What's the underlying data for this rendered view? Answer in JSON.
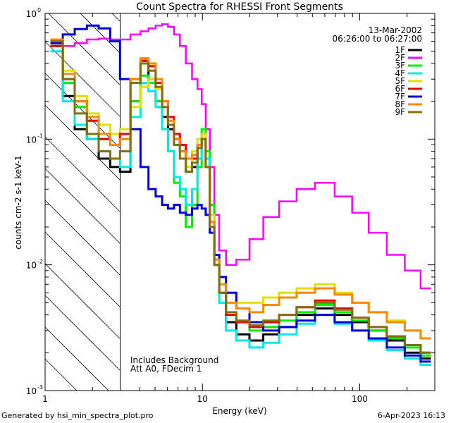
{
  "chart_data": {
    "type": "line",
    "title": "Count Spectra for RHESSI Front Segments",
    "xlabel": "Energy (keV)",
    "ylabel": "counts cm-2 s-1 keV-1",
    "xscale": "log",
    "yscale": "log",
    "xlim": [
      1,
      300
    ],
    "ylim": [
      0.001,
      1.0
    ],
    "x_tick_labels": [
      "1",
      "10",
      "100"
    ],
    "y_tick_labels": [
      "10",
      "10",
      "10",
      "10"
    ],
    "y_tick_exponents": [
      "0",
      "-1",
      "-2",
      "-3"
    ],
    "shaded_region_keV": [
      1,
      3
    ],
    "legend": {
      "date": "13-Mar-2002",
      "time_range": "06:26:00 to 06:27:00",
      "placement": "top-right"
    },
    "annotations": [
      "Includes Background",
      "Att A0, FDecim 1"
    ],
    "series": [
      {
        "name": "1F",
        "color": "#000000",
        "x": [
          1.2,
          1.4,
          1.7,
          2.0,
          2.4,
          2.8,
          3.2,
          3.8,
          4.3,
          4.8,
          5.3,
          5.8,
          6.3,
          6.9,
          7.5,
          8.2,
          9.0,
          9.6,
          10.2,
          10.8,
          11.5,
          12.3,
          13.3,
          15,
          18,
          22,
          27,
          35,
          45,
          60,
          80,
          100,
          130,
          170,
          220,
          270
        ],
        "y": [
          0.55,
          0.22,
          0.12,
          0.1,
          0.07,
          0.06,
          0.055,
          0.2,
          0.42,
          0.3,
          0.2,
          0.15,
          0.12,
          0.1,
          0.08,
          0.055,
          0.06,
          0.09,
          0.1,
          0.07,
          0.03,
          0.012,
          0.006,
          0.0035,
          0.0028,
          0.0025,
          0.0028,
          0.0032,
          0.004,
          0.0045,
          0.004,
          0.0035,
          0.003,
          0.0025,
          0.002,
          0.0018
        ]
      },
      {
        "name": "2F",
        "color": "#ff00ff",
        "x": [
          1.2,
          1.4,
          1.7,
          2.0,
          2.4,
          2.8,
          3.2,
          3.8,
          4.3,
          4.8,
          5.3,
          5.8,
          6.3,
          6.9,
          7.5,
          8.2,
          9.0,
          9.6,
          10.2,
          10.8,
          11.5,
          12.3,
          13.3,
          15,
          18,
          22,
          27,
          35,
          45,
          60,
          80,
          100,
          130,
          170,
          220,
          270
        ],
        "y": [
          0.6,
          0.55,
          0.58,
          0.62,
          0.63,
          0.62,
          0.62,
          0.68,
          0.72,
          0.76,
          0.8,
          0.82,
          0.78,
          0.68,
          0.55,
          0.4,
          0.3,
          0.25,
          0.19,
          0.12,
          0.06,
          0.025,
          0.013,
          0.01,
          0.011,
          0.016,
          0.024,
          0.032,
          0.04,
          0.045,
          0.035,
          0.026,
          0.018,
          0.012,
          0.009,
          0.0065
        ]
      },
      {
        "name": "3F",
        "color": "#00ee00",
        "x": [
          1.2,
          1.4,
          1.7,
          2.0,
          2.4,
          2.8,
          3.2,
          3.8,
          4.3,
          4.8,
          5.3,
          5.8,
          6.3,
          6.9,
          7.5,
          8.2,
          9.0,
          9.6,
          10.2,
          10.8,
          11.5,
          12.3,
          13.3,
          15,
          18,
          22,
          27,
          35,
          45,
          60,
          80,
          100,
          130,
          170,
          220,
          270
        ],
        "y": [
          0.55,
          0.28,
          0.18,
          0.14,
          0.1,
          0.09,
          0.1,
          0.2,
          0.32,
          0.28,
          0.2,
          0.12,
          0.08,
          0.045,
          0.035,
          0.02,
          0.03,
          0.06,
          0.12,
          0.08,
          0.03,
          0.012,
          0.007,
          0.004,
          0.0035,
          0.003,
          0.0032,
          0.0036,
          0.0042,
          0.0048,
          0.0042,
          0.0036,
          0.003,
          0.0026,
          0.0022,
          0.0019
        ]
      },
      {
        "name": "4F",
        "color": "#00e8e8",
        "x": [
          1.2,
          1.4,
          1.7,
          2.0,
          2.4,
          2.8,
          3.2,
          3.8,
          4.3,
          4.8,
          5.3,
          5.8,
          6.3,
          6.9,
          7.5,
          8.2,
          9.0,
          9.6,
          10.2,
          10.8,
          11.5,
          12.3,
          13.3,
          15,
          18,
          22,
          27,
          35,
          45,
          60,
          80,
          100,
          130,
          170,
          220,
          270
        ],
        "y": [
          0.5,
          0.2,
          0.13,
          0.1,
          0.08,
          0.07,
          0.06,
          0.15,
          0.28,
          0.24,
          0.18,
          0.12,
          0.08,
          0.05,
          0.04,
          0.03,
          0.04,
          0.07,
          0.11,
          0.07,
          0.025,
          0.01,
          0.005,
          0.003,
          0.0025,
          0.0022,
          0.0024,
          0.0028,
          0.0034,
          0.004,
          0.0034,
          0.003,
          0.0025,
          0.0021,
          0.0018,
          0.0016
        ]
      },
      {
        "name": "5F",
        "color": "#e0e000",
        "x": [
          1.2,
          1.4,
          1.7,
          2.0,
          2.4,
          2.8,
          3.2,
          3.8,
          4.3,
          4.8,
          5.3,
          5.8,
          6.3,
          6.9,
          7.5,
          8.2,
          9.0,
          9.6,
          10.2,
          10.8,
          11.5,
          12.3,
          13.3,
          15,
          18,
          22,
          27,
          35,
          45,
          60,
          80,
          100,
          130,
          170,
          220,
          270
        ],
        "y": [
          0.58,
          0.35,
          0.22,
          0.16,
          0.13,
          0.11,
          0.12,
          0.18,
          0.26,
          0.3,
          0.25,
          0.18,
          0.13,
          0.09,
          0.07,
          0.06,
          0.08,
          0.1,
          0.11,
          0.06,
          0.025,
          0.012,
          0.008,
          0.006,
          0.005,
          0.005,
          0.0055,
          0.006,
          0.0065,
          0.007,
          0.006,
          0.005,
          0.0042,
          0.0036,
          0.003,
          0.0026
        ]
      },
      {
        "name": "6F",
        "color": "#ee0000",
        "x": [
          1.2,
          1.4,
          1.7,
          2.0,
          2.4,
          2.8,
          3.2,
          3.8,
          4.3,
          4.8,
          5.3,
          5.8,
          6.3,
          6.9,
          7.5,
          8.2,
          9.0,
          9.6,
          10.2,
          10.8,
          11.5,
          12.3,
          13.3,
          15,
          18,
          22,
          27,
          35,
          45,
          60,
          80,
          100,
          130,
          170,
          220,
          270
        ],
        "y": [
          0.55,
          0.3,
          0.2,
          0.14,
          0.1,
          0.09,
          0.11,
          0.3,
          0.42,
          0.38,
          0.28,
          0.2,
          0.15,
          0.11,
          0.09,
          0.07,
          0.07,
          0.09,
          0.1,
          0.06,
          0.02,
          0.01,
          0.006,
          0.004,
          0.0035,
          0.0032,
          0.0035,
          0.004,
          0.0046,
          0.0052,
          0.0045,
          0.0038,
          0.0032,
          0.0027,
          0.0023,
          0.002
        ]
      },
      {
        "name": "7F",
        "color": "#0000dd",
        "x": [
          1.2,
          1.4,
          1.7,
          2.0,
          2.4,
          2.8,
          3.2,
          3.8,
          4.3,
          4.8,
          5.3,
          5.8,
          6.3,
          6.9,
          7.5,
          8.2,
          9.0,
          9.6,
          10.2,
          10.8,
          11.5,
          12.3,
          13.3,
          15,
          18,
          22,
          27,
          35,
          45,
          60,
          80,
          100,
          130,
          170,
          220,
          270
        ],
        "y": [
          0.58,
          0.68,
          0.75,
          0.8,
          0.76,
          0.6,
          0.3,
          0.12,
          0.06,
          0.04,
          0.035,
          0.03,
          0.028,
          0.03,
          0.026,
          0.025,
          0.028,
          0.03,
          0.028,
          0.025,
          0.018,
          0.012,
          0.008,
          0.006,
          0.0045,
          0.0035,
          0.003,
          0.0032,
          0.0036,
          0.004,
          0.0035,
          0.003,
          0.0026,
          0.0022,
          0.0019,
          0.0017
        ]
      },
      {
        "name": "8F",
        "color": "#ff8800",
        "x": [
          1.2,
          1.4,
          1.7,
          2.0,
          2.4,
          2.8,
          3.2,
          3.8,
          4.3,
          4.8,
          5.3,
          5.8,
          6.3,
          6.9,
          7.5,
          8.2,
          9.0,
          9.6,
          10.2,
          10.8,
          11.5,
          12.3,
          13.3,
          15,
          18,
          22,
          27,
          35,
          45,
          60,
          80,
          100,
          130,
          170,
          220,
          270
        ],
        "y": [
          0.62,
          0.33,
          0.2,
          0.15,
          0.11,
          0.09,
          0.1,
          0.3,
          0.44,
          0.4,
          0.3,
          0.2,
          0.14,
          0.1,
          0.08,
          0.07,
          0.075,
          0.09,
          0.1,
          0.06,
          0.022,
          0.011,
          0.007,
          0.005,
          0.0045,
          0.0042,
          0.0048,
          0.0055,
          0.006,
          0.0065,
          0.0058,
          0.005,
          0.0042,
          0.0035,
          0.003,
          0.0026
        ]
      },
      {
        "name": "9F",
        "color": "#807010",
        "x": [
          1.2,
          1.4,
          1.7,
          2.0,
          2.4,
          2.8,
          3.2,
          3.8,
          4.3,
          4.8,
          5.3,
          5.8,
          6.3,
          6.9,
          7.5,
          8.2,
          9.0,
          9.6,
          10.2,
          10.8,
          11.5,
          12.3,
          13.3,
          15,
          18,
          22,
          27,
          35,
          45,
          60,
          80,
          100,
          130,
          170,
          220,
          270
        ],
        "y": [
          0.6,
          0.3,
          0.16,
          0.11,
          0.08,
          0.07,
          0.08,
          0.28,
          0.4,
          0.35,
          0.26,
          0.18,
          0.13,
          0.09,
          0.07,
          0.055,
          0.065,
          0.085,
          0.1,
          0.06,
          0.02,
          0.01,
          0.006,
          0.0042,
          0.0036,
          0.0033,
          0.0036,
          0.004,
          0.0046,
          0.005,
          0.0044,
          0.0038,
          0.0032,
          0.0027,
          0.0023,
          0.002
        ]
      }
    ]
  },
  "footer": {
    "left": "Generated by hsi_min_spectra_plot.pro",
    "right": "6-Apr-2023 16:13"
  }
}
